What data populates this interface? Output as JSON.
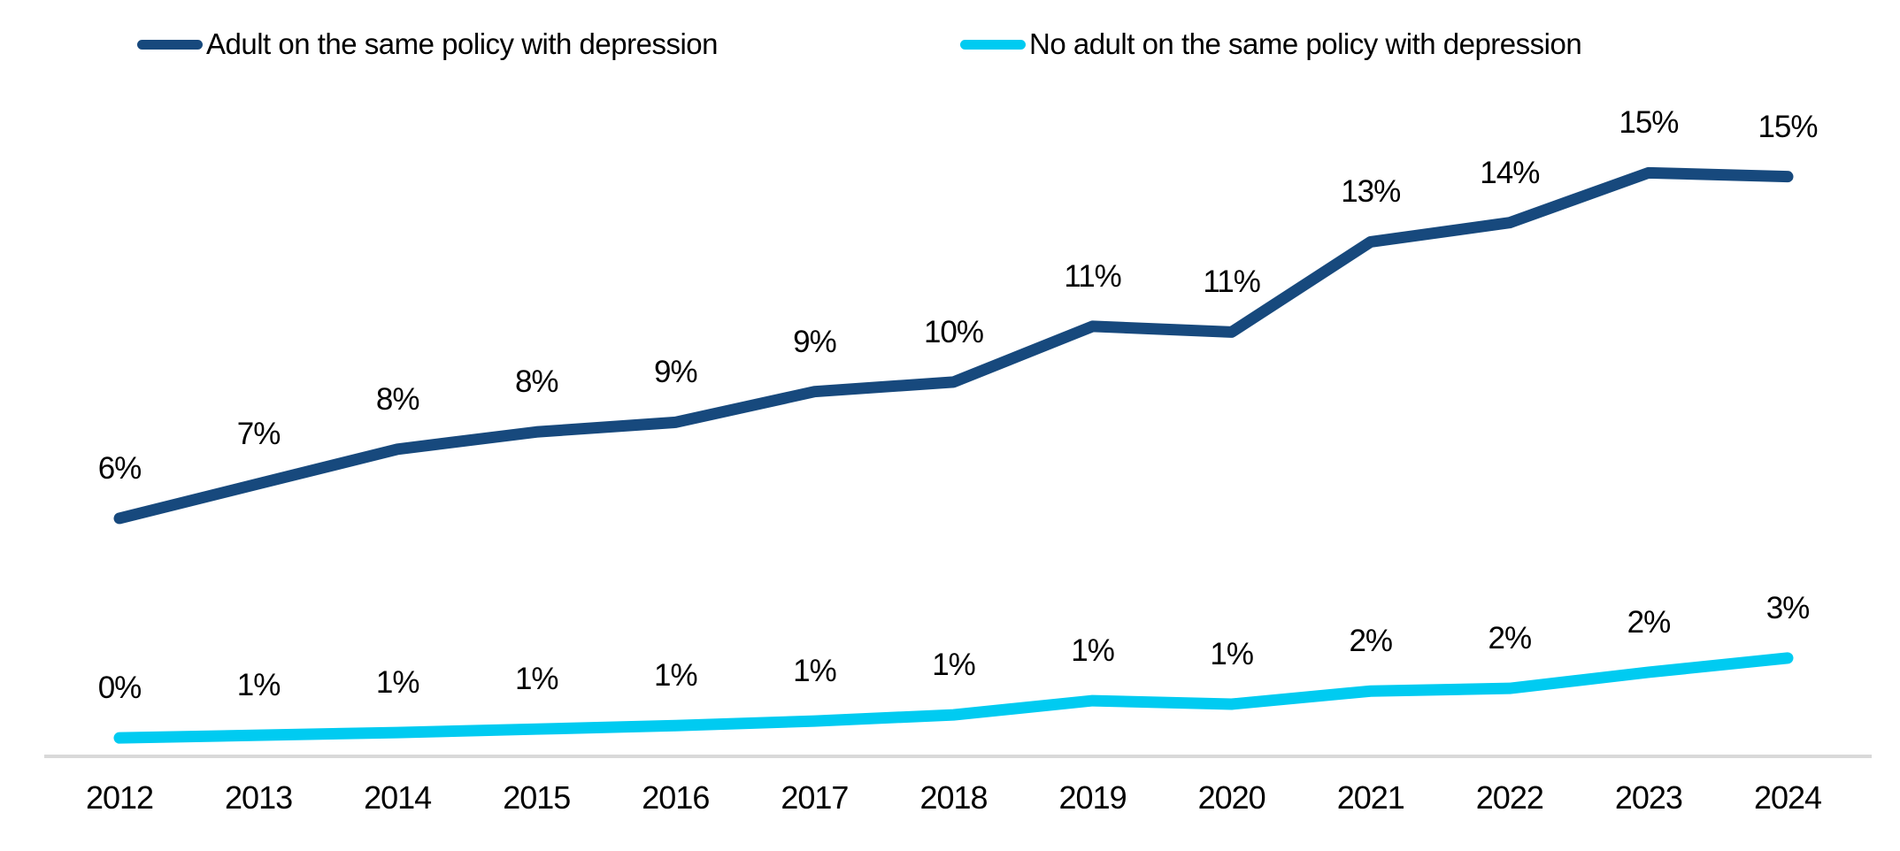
{
  "chart_data": {
    "type": "line",
    "title": "",
    "xlabel": "",
    "ylabel": "",
    "categories": [
      "2012",
      "2013",
      "2014",
      "2015",
      "2016",
      "2017",
      "2018",
      "2019",
      "2020",
      "2021",
      "2022",
      "2023",
      "2024"
    ],
    "series": [
      {
        "name": "Adult on the same policy with depression",
        "color": "#17497D",
        "values": [
          6,
          7,
          8,
          8,
          9,
          9,
          10,
          11,
          11,
          13,
          14,
          15,
          15
        ],
        "labels": [
          "6%",
          "7%",
          "8%",
          "8%",
          "9%",
          "9%",
          "10%",
          "11%",
          "11%",
          "13%",
          "14%",
          "15%",
          "15%"
        ],
        "values_plot_estimate": [
          6.2,
          7.1,
          8.0,
          8.45,
          8.7,
          9.5,
          9.75,
          11.2,
          11.05,
          13.4,
          13.9,
          15.2,
          15.1
        ]
      },
      {
        "name": "No adult on the same policy with depression",
        "color": "#00CBF1",
        "values": [
          0,
          1,
          1,
          1,
          1,
          1,
          1,
          1,
          1,
          2,
          2,
          2,
          3
        ],
        "labels": [
          "0%",
          "1%",
          "1%",
          "1%",
          "1%",
          "1%",
          "1%",
          "1%",
          "1%",
          "2%",
          "2%",
          "2%",
          "3%"
        ],
        "values_plot_estimate": [
          0.48,
          0.55,
          0.62,
          0.71,
          0.8,
          0.92,
          1.08,
          1.45,
          1.36,
          1.7,
          1.77,
          2.19,
          2.56
        ]
      }
    ],
    "data_labels": true,
    "legend_position": "top",
    "grid": false,
    "ylim_implied": [
      0,
      16
    ],
    "axis_line_color": "#D9D9D9",
    "label_unit": "%"
  }
}
